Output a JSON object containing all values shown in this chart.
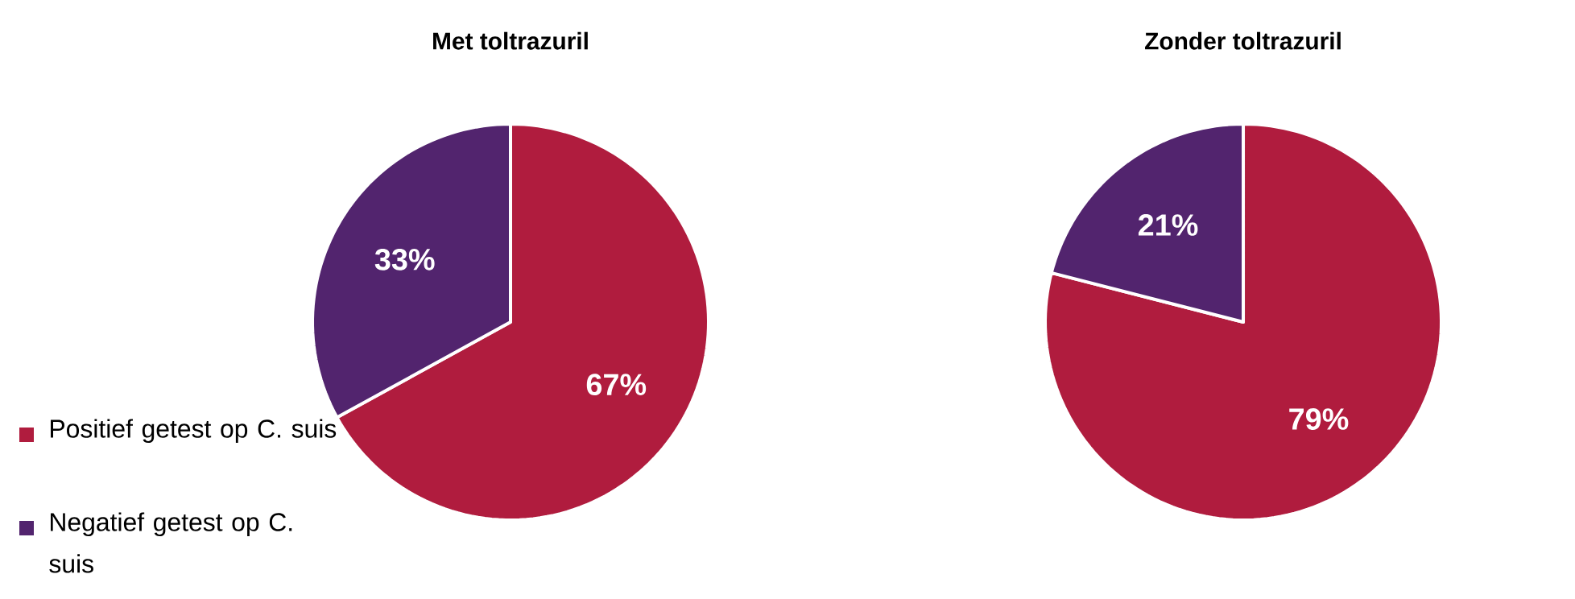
{
  "chart_data": [
    {
      "type": "pie",
      "title": "Met toltrazuril",
      "categories": [
        "Positief getest op C. suis",
        "Negatief getest op C. suis"
      ],
      "values": [
        67,
        33
      ],
      "colors": [
        "#b01c3e",
        "#52246e"
      ],
      "value_labels": [
        "67%",
        "33%"
      ],
      "legend": "bottom left"
    },
    {
      "type": "pie",
      "title": "Zonder toltrazuril",
      "categories": [
        null,
        null
      ],
      "values": [
        79,
        21
      ],
      "colors": [
        "#b01c3e",
        "#52246e"
      ],
      "value_labels": [
        "79%",
        "21%"
      ]
    }
  ]
}
